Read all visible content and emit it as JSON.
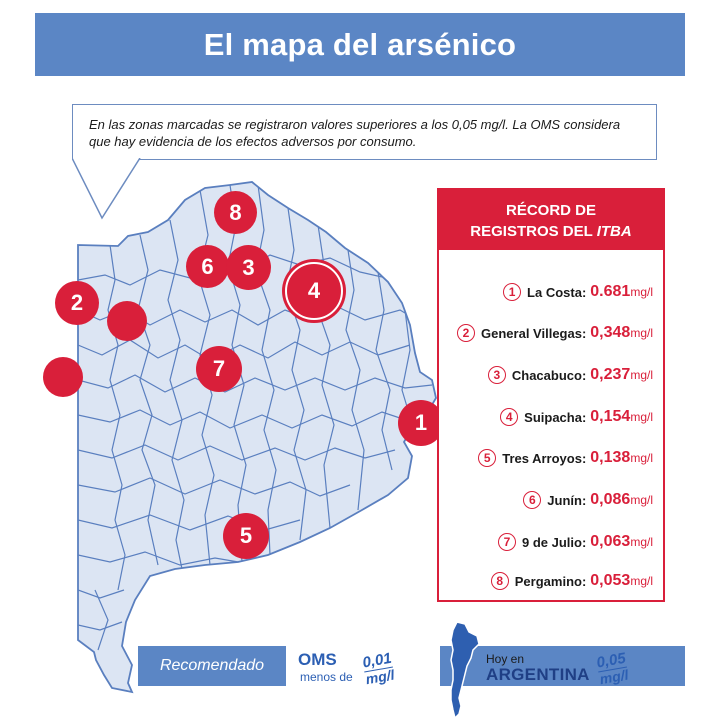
{
  "title": "El mapa del arsénico",
  "callout": {
    "text": "En las zonas marcadas se registraron valores superiores a los 0,05 mg/l. La OMS considera que hay evidencia de los efectos adversos por consumo."
  },
  "map": {
    "markers": [
      {
        "label": "8"
      },
      {
        "label": "6"
      },
      {
        "label": "3"
      },
      {
        "label": "4"
      },
      {
        "label": "2"
      },
      {
        "label": ""
      },
      {
        "label": ""
      },
      {
        "label": "7"
      },
      {
        "label": "1"
      },
      {
        "label": "5"
      }
    ]
  },
  "records": {
    "header_line1": "RÉCORD DE",
    "header_line2": "REGISTROS DEL",
    "header_itba": "ITBA",
    "items": [
      {
        "num": "1",
        "place": "La Costa:",
        "value": "0.681",
        "unit": "mg/l"
      },
      {
        "num": "2",
        "place": "General Villegas:",
        "value": "0,348",
        "unit": "mg/l"
      },
      {
        "num": "3",
        "place": "Chacabuco:",
        "value": "0,237",
        "unit": "mg/l"
      },
      {
        "num": "4",
        "place": "Suipacha:",
        "value": "0,154",
        "unit": "mg/l"
      },
      {
        "num": "5",
        "place": "Tres Arroyos:",
        "value": "0,138",
        "unit": "mg/l"
      },
      {
        "num": "6",
        "place": "Junín:",
        "value": "0,086",
        "unit": "mg/l"
      },
      {
        "num": "7",
        "place": "9 de Julio:",
        "value": "0,063",
        "unit": "mg/l"
      },
      {
        "num": "8",
        "place": "Pergamino:",
        "value": "0,053",
        "unit": "mg/l"
      }
    ]
  },
  "bottom": {
    "recomendado": "Recomendado",
    "oms": "OMS",
    "menos_de": "menos de",
    "oms_value": "0,01",
    "oms_unit": "mg/l",
    "hoy_en": "Hoy en",
    "argentina": "ARGENTINA",
    "arg_value": "0,05",
    "arg_unit": "mg/l"
  },
  "colors": {
    "accent_blue": "#5b86c5",
    "marker_red": "#d91f3a",
    "map_fill": "#dce5f3",
    "map_stroke": "#5a7fbf"
  }
}
